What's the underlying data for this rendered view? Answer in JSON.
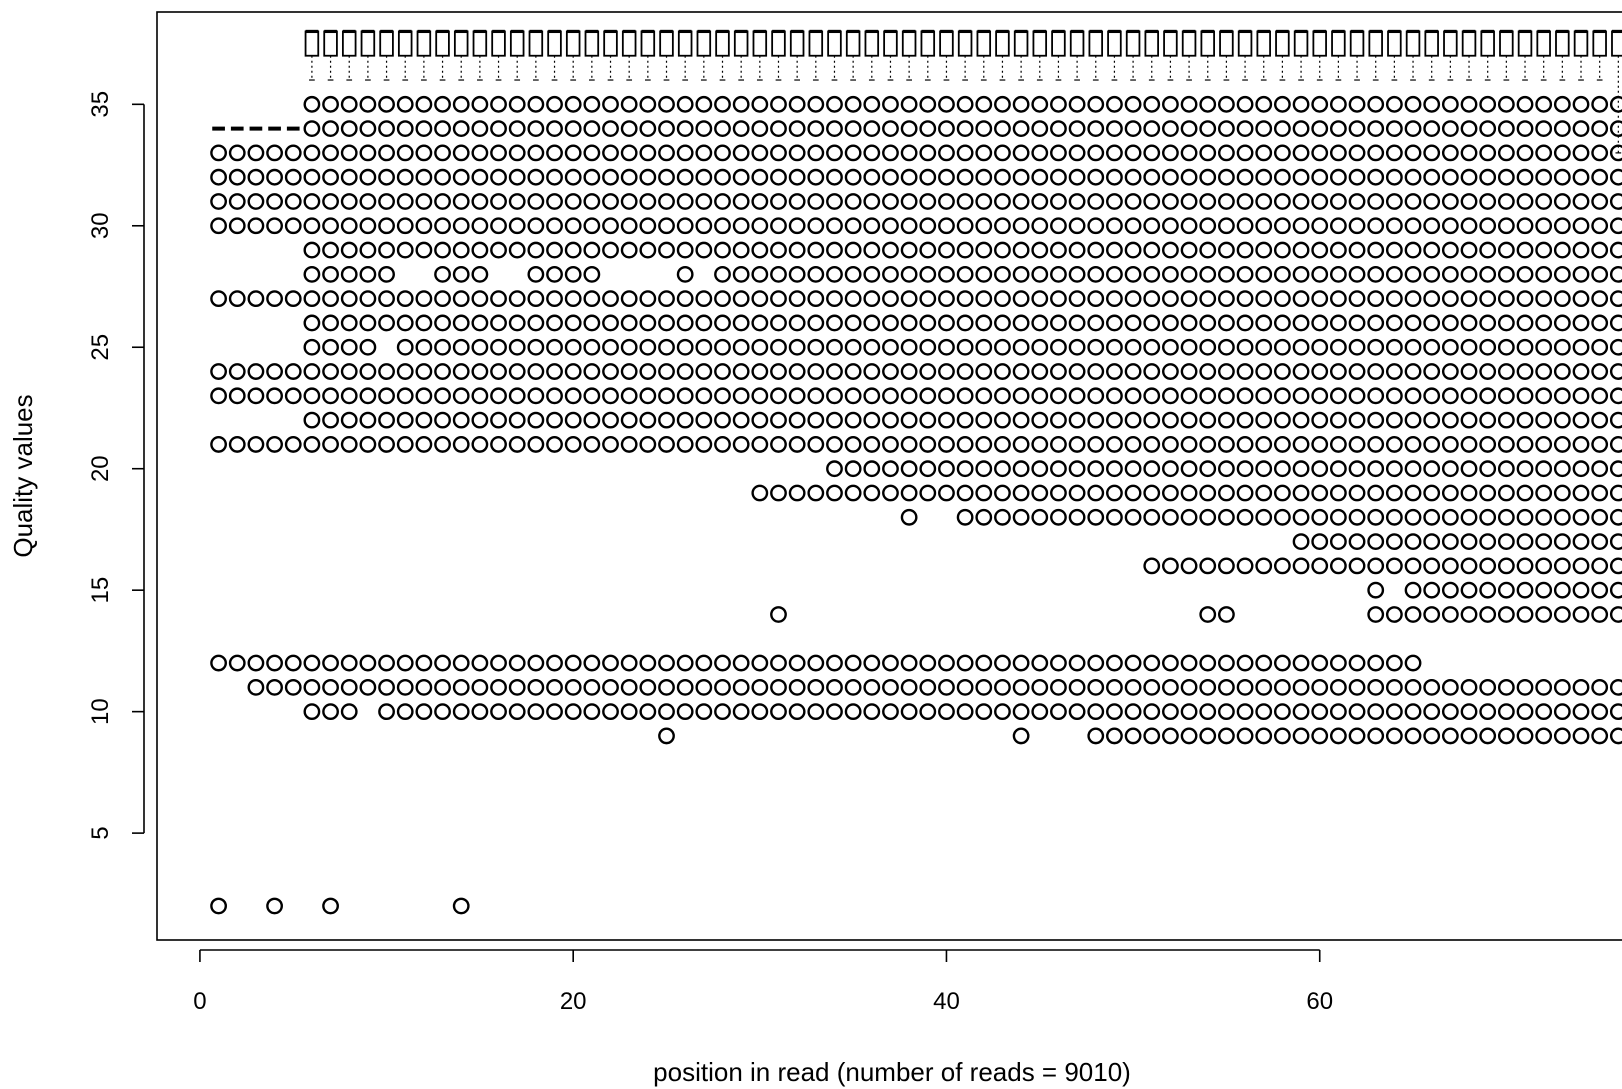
{
  "chart_data": {
    "type": "scatter",
    "subtype": "boxplot-with-outliers",
    "title": "",
    "xlabel": "position in read (number of reads = 9010)",
    "ylabel": "Quality values",
    "xlim": [
      -2.3,
      77
    ],
    "ylim": [
      0.6,
      38.8
    ],
    "x_ticks": [
      "0",
      "20",
      "40",
      "60"
    ],
    "x_tick_values": [
      0,
      20,
      40,
      60
    ],
    "y_ticks": [
      "5",
      "10",
      "15",
      "20",
      "25",
      "30",
      "35"
    ],
    "y_tick_values": [
      5,
      10,
      15,
      20,
      25,
      30,
      35
    ],
    "grid": false,
    "box_color": "#000000",
    "point_color": "#000000",
    "box_series": {
      "name": "",
      "positions_start": 6,
      "positions_end": 76,
      "box_low": 37,
      "box_high": 38,
      "whisker_low_dashed": 36,
      "last_position_whisker_low": 33,
      "early_median_positions": [
        1,
        5
      ],
      "early_median": 34
    },
    "outliers": [
      {
        "x_from": 1,
        "x_to": 5,
        "y": [
          33,
          32,
          31,
          30,
          27,
          24,
          23,
          21,
          12
        ]
      },
      {
        "x_from": 6,
        "x_to": 76,
        "y": [
          35,
          34,
          33,
          32,
          31,
          30,
          29,
          27,
          26,
          24,
          23,
          22,
          21,
          11
        ]
      },
      {
        "x_from": 6,
        "x_to": 9,
        "y": [
          28,
          25
        ]
      },
      {
        "x_from": 11,
        "x_to": 76,
        "y": [
          25
        ]
      },
      {
        "x_from": 10,
        "x_to": 10,
        "y": [
          28,
          22
        ]
      },
      {
        "x_from": 11,
        "x_to": 76,
        "y": [
          22
        ]
      },
      {
        "x": [
          13,
          14,
          15,
          18,
          19,
          20,
          21,
          26
        ],
        "y": 28
      },
      {
        "x_from": 28,
        "x_to": 76,
        "y": [
          28
        ]
      },
      {
        "x_from": 6,
        "x_to": 65,
        "y": [
          12
        ]
      },
      {
        "x_from": 3,
        "x_to": 6,
        "y": [
          11
        ]
      },
      {
        "x_from": 8,
        "x_to": 76,
        "y": [
          11
        ]
      },
      {
        "x": [
          6,
          7,
          8
        ],
        "y": 10
      },
      {
        "x_from": 10,
        "x_to": 76,
        "y": [
          10
        ]
      },
      {
        "x": [
          25,
          44
        ],
        "y": 9
      },
      {
        "x_from": 48,
        "x_to": 76,
        "y": [
          9
        ]
      },
      {
        "x_from": 34,
        "x_to": 76,
        "y": [
          20
        ]
      },
      {
        "x_from": 30,
        "x_to": 76,
        "y": [
          19
        ]
      },
      {
        "x": [
          38
        ],
        "y": 18
      },
      {
        "x_from": 41,
        "x_to": 76,
        "y": [
          18
        ]
      },
      {
        "x_from": 59,
        "x_to": 76,
        "y": [
          17
        ]
      },
      {
        "x_from": 51,
        "x_to": 76,
        "y": [
          16
        ]
      },
      {
        "x": [
          63
        ],
        "y": 15
      },
      {
        "x_from": 65,
        "x_to": 76,
        "y": [
          15
        ]
      },
      {
        "x": [
          31,
          54,
          55
        ],
        "y": 14
      },
      {
        "x_from": 63,
        "x_to": 76,
        "y": [
          14
        ]
      },
      {
        "x": [
          1,
          4,
          7,
          14
        ],
        "y": 2
      }
    ]
  }
}
